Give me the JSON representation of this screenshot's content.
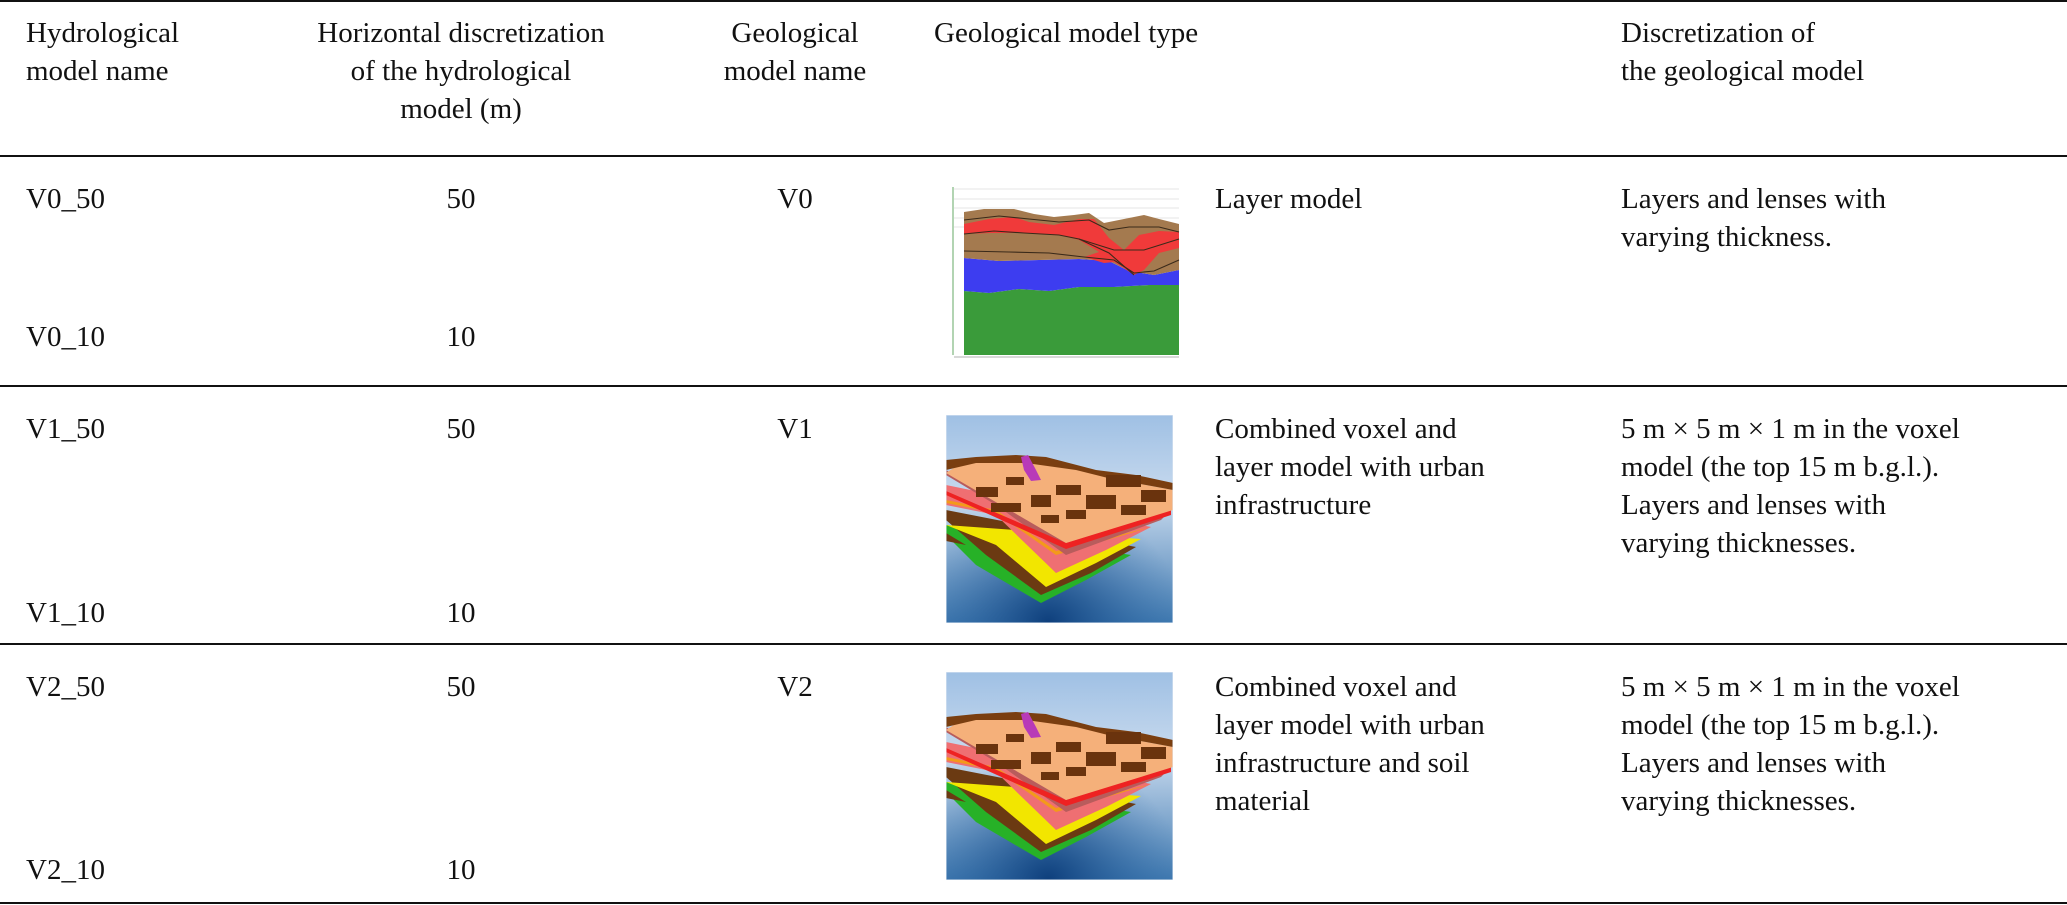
{
  "table": {
    "headers": [
      "Hydrological\nmodel name",
      "Horizontal discretization\nof the hydrological\nmodel (m)",
      "Geological\nmodel name",
      "Geological model type",
      "Discretization of\nthe geological model"
    ],
    "rows": [
      {
        "hydro_names": [
          "V0_50",
          "V0_10"
        ],
        "discretizations": [
          "50",
          "10"
        ],
        "geo_name": "V0",
        "image": "2D geological cross-section",
        "geo_type": "Layer model",
        "geo_discretization": "Layers and lenses with\nvarying thickness."
      },
      {
        "hydro_names": [
          "V1_50",
          "V1_10"
        ],
        "discretizations": [
          "50",
          "10"
        ],
        "geo_name": "V1",
        "image": "3D voxel block model",
        "geo_type": "Combined voxel and\nlayer model with urban\ninfrastructure",
        "geo_discretization": "5 m × 5 m × 1 m in the voxel\nmodel (the top 15 m b.g.l.).\nLayers and lenses with\nvarying thicknesses."
      },
      {
        "hydro_names": [
          "V2_50",
          "V2_10"
        ],
        "discretizations": [
          "50",
          "10"
        ],
        "geo_name": "V2",
        "image": "3D voxel block model",
        "geo_type": "Combined voxel and\nlayer model with urban\ninfrastructure and soil\nmaterial",
        "geo_discretization": "5 m × 5 m × 1 m in the voxel\nmodel (the top 15 m b.g.l.).\nLayers and lenses with\nvarying thicknesses."
      }
    ]
  }
}
